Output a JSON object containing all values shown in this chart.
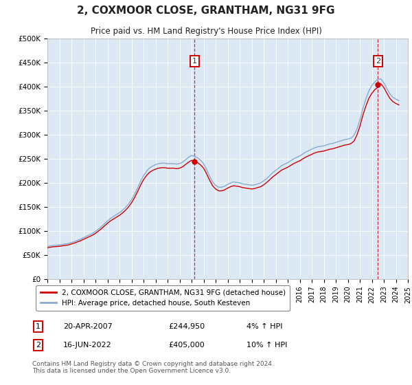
{
  "title": "2, COXMOOR CLOSE, GRANTHAM, NG31 9FG",
  "subtitle": "Price paid vs. HM Land Registry's House Price Index (HPI)",
  "ylabel_ticks": [
    "£0",
    "£50K",
    "£100K",
    "£150K",
    "£200K",
    "£250K",
    "£300K",
    "£350K",
    "£400K",
    "£450K",
    "£500K"
  ],
  "ytick_values": [
    0,
    50000,
    100000,
    150000,
    200000,
    250000,
    300000,
    350000,
    400000,
    450000,
    500000
  ],
  "ylim": [
    0,
    500000
  ],
  "background_color": "#dce9f5",
  "line_color_property": "#cc0000",
  "line_color_hpi": "#88aacc",
  "transaction1_year": 2007.25,
  "transaction1_price": 244950,
  "transaction1_hpi_pct": "4%",
  "transaction1_date": "20-APR-2007",
  "transaction2_year": 2022.5,
  "transaction2_price": 405000,
  "transaction2_hpi_pct": "10%",
  "transaction2_date": "16-JUN-2022",
  "legend_label1": "2, COXMOOR CLOSE, GRANTHAM, NG31 9FG (detached house)",
  "legend_label2": "HPI: Average price, detached house, South Kesteven",
  "footer": "Contains HM Land Registry data © Crown copyright and database right 2024.\nThis data is licensed under the Open Government Licence v3.0.",
  "xlim": [
    1995,
    2025
  ],
  "xtick_years": [
    1995,
    1996,
    1997,
    1998,
    1999,
    2000,
    2001,
    2002,
    2003,
    2004,
    2005,
    2006,
    2007,
    2008,
    2009,
    2010,
    2011,
    2012,
    2013,
    2014,
    2015,
    2016,
    2017,
    2018,
    2019,
    2020,
    2021,
    2022,
    2023,
    2024,
    2025
  ],
  "hpi_years": [
    1995.0,
    1995.25,
    1995.5,
    1995.75,
    1996.0,
    1996.25,
    1996.5,
    1996.75,
    1997.0,
    1997.25,
    1997.5,
    1997.75,
    1998.0,
    1998.25,
    1998.5,
    1998.75,
    1999.0,
    1999.25,
    1999.5,
    1999.75,
    2000.0,
    2000.25,
    2000.5,
    2000.75,
    2001.0,
    2001.25,
    2001.5,
    2001.75,
    2002.0,
    2002.25,
    2002.5,
    2002.75,
    2003.0,
    2003.25,
    2003.5,
    2003.75,
    2004.0,
    2004.25,
    2004.5,
    2004.75,
    2005.0,
    2005.25,
    2005.5,
    2005.75,
    2006.0,
    2006.25,
    2006.5,
    2006.75,
    2007.0,
    2007.25,
    2007.5,
    2007.75,
    2008.0,
    2008.25,
    2008.5,
    2008.75,
    2009.0,
    2009.25,
    2009.5,
    2009.75,
    2010.0,
    2010.25,
    2010.5,
    2010.75,
    2011.0,
    2011.25,
    2011.5,
    2011.75,
    2012.0,
    2012.25,
    2012.5,
    2012.75,
    2013.0,
    2013.25,
    2013.5,
    2013.75,
    2014.0,
    2014.25,
    2014.5,
    2014.75,
    2015.0,
    2015.25,
    2015.5,
    2015.75,
    2016.0,
    2016.25,
    2016.5,
    2016.75,
    2017.0,
    2017.25,
    2017.5,
    2017.75,
    2018.0,
    2018.25,
    2018.5,
    2018.75,
    2019.0,
    2019.25,
    2019.5,
    2019.75,
    2020.0,
    2020.25,
    2020.5,
    2020.75,
    2021.0,
    2021.25,
    2021.5,
    2021.75,
    2022.0,
    2022.25,
    2022.5,
    2022.75,
    2023.0,
    2023.25,
    2023.5,
    2023.75,
    2024.0,
    2024.25
  ],
  "hpi_raw": [
    68000,
    69000,
    70000,
    70500,
    71000,
    72000,
    73000,
    74000,
    76000,
    78000,
    80500,
    83000,
    86000,
    89000,
    92000,
    95000,
    99000,
    104000,
    109000,
    115000,
    121000,
    126000,
    130000,
    134000,
    138000,
    143000,
    149000,
    156000,
    165000,
    176000,
    189000,
    203000,
    215000,
    224000,
    231000,
    235000,
    238000,
    240000,
    241000,
    241000,
    240000,
    240000,
    240000,
    239000,
    240000,
    243000,
    248000,
    253000,
    257000,
    255000,
    252000,
    247000,
    240000,
    228000,
    214000,
    202000,
    195000,
    191000,
    191000,
    193000,
    197000,
    200000,
    202000,
    201000,
    200000,
    198000,
    197000,
    196000,
    195000,
    196000,
    198000,
    200000,
    204000,
    209000,
    215000,
    221000,
    226000,
    231000,
    236000,
    239000,
    242000,
    246000,
    250000,
    253000,
    256000,
    260000,
    264000,
    267000,
    270000,
    273000,
    275000,
    276000,
    277000,
    279000,
    281000,
    282000,
    284000,
    286000,
    288000,
    290000,
    291000,
    293000,
    298000,
    311000,
    330000,
    354000,
    374000,
    391000,
    402000,
    410000,
    415000,
    416000,
    408000,
    396000,
    385000,
    378000,
    374000,
    371000
  ]
}
